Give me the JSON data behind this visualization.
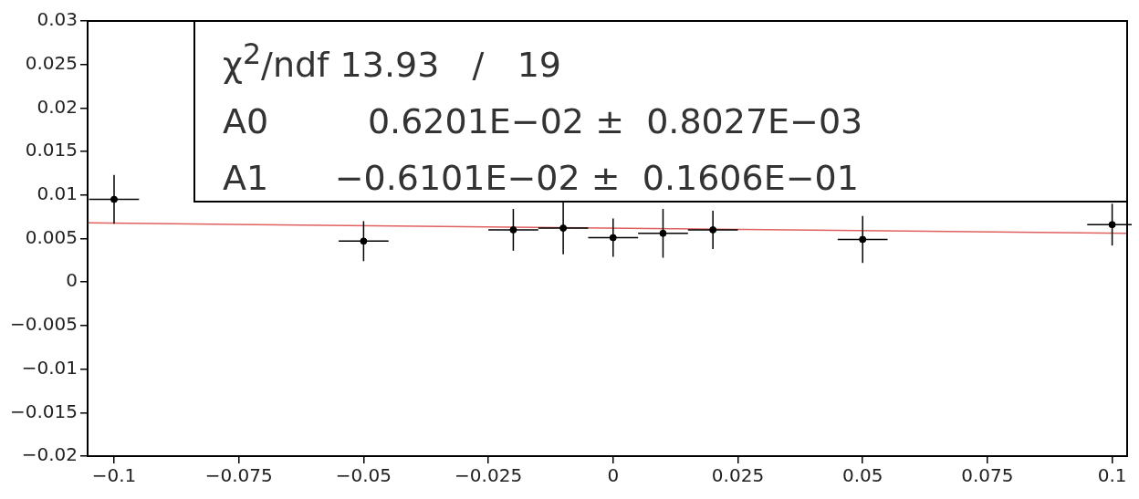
{
  "chart_data": {
    "type": "scatter",
    "xlim": [
      -0.1053,
      0.103
    ],
    "xticks": [
      -0.1,
      -0.075,
      -0.05,
      -0.025,
      0,
      0.025,
      0.05,
      0.075,
      0.1
    ],
    "ylim": [
      -0.02,
      0.03
    ],
    "yticks": [
      -0.02,
      -0.015,
      -0.01,
      -0.005,
      0,
      0.005,
      0.01,
      0.015,
      0.02,
      0.025,
      0.03
    ],
    "grid": false,
    "legend": false,
    "marker": "circle",
    "annotations": [
      "χ$^{2}$/ndf 13.93   /   19",
      "A0         0.6201E−02 ±  0.8027E−03",
      "A1      −0.6101E−02 ±  0.1606E−01"
    ],
    "series": [
      {
        "color": "#000000",
        "x": [
          -0.1,
          -0.05,
          -0.02,
          -0.01,
          0,
          0.01,
          0.02,
          0.05,
          0.1
        ],
        "values": [
          0.0095,
          0.0047,
          0.006,
          0.0062,
          0.0051,
          0.0056,
          0.006,
          0.0049,
          0.0066
        ],
        "errors": [
          0.0028,
          0.0023,
          0.0024,
          0.003,
          0.0022,
          0.0028,
          0.0022,
          0.0027,
          0.0024
        ],
        "xerrors": [
          0.005,
          0.005,
          0.005,
          0.005,
          0.005,
          0.005,
          0.005,
          0.005,
          0.005
        ]
      },
      {
        "type": "line",
        "color": "#e06060",
        "line_style": "solid",
        "marker": "none",
        "x": [
          -0.1053,
          0.103
        ],
        "values": [
          0.0068,
          0.0056
        ]
      }
    ]
  }
}
